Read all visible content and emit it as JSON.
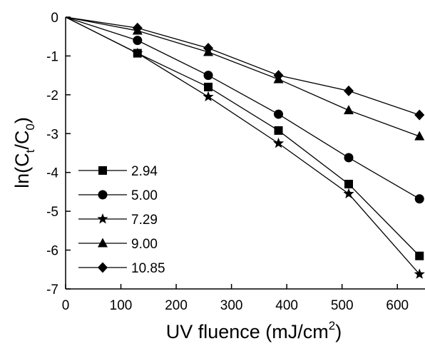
{
  "chart_data": {
    "type": "line",
    "title": "",
    "xlabel": {
      "main": "UV fluence (mJ/cm",
      "sup": "2",
      "tail": ")"
    },
    "ylabel": {
      "prefix": "ln(C",
      "sub1": "t",
      "mid": "/C",
      "sub2": "0",
      "suffix": ")"
    },
    "xlim": [
      0,
      650
    ],
    "ylim": [
      -7,
      0
    ],
    "xticks": [
      0,
      100,
      200,
      300,
      400,
      500,
      600
    ],
    "yticks": [
      0,
      -1,
      -2,
      -3,
      -4,
      -5,
      -6,
      -7
    ],
    "x": [
      0,
      130,
      258,
      385,
      512,
      640
    ],
    "series": [
      {
        "name": "2.94",
        "marker": "square",
        "values": [
          0,
          -0.93,
          -1.8,
          -2.92,
          -4.3,
          -6.15
        ]
      },
      {
        "name": "5.00",
        "marker": "circle",
        "values": [
          0,
          -0.6,
          -1.5,
          -2.5,
          -3.62,
          -4.68
        ]
      },
      {
        "name": "7.29",
        "marker": "star",
        "values": [
          0,
          -0.93,
          -2.05,
          -3.25,
          -4.55,
          -6.62
        ]
      },
      {
        "name": "9.00",
        "marker": "triangle",
        "values": [
          0,
          -0.35,
          -0.9,
          -1.6,
          -2.4,
          -3.07
        ]
      },
      {
        "name": "10.85",
        "marker": "diamond",
        "values": [
          0,
          -0.28,
          -0.8,
          -1.5,
          -1.9,
          -2.52
        ]
      }
    ],
    "legend_position": "bottom-left",
    "grid": false,
    "color": "#000000"
  }
}
